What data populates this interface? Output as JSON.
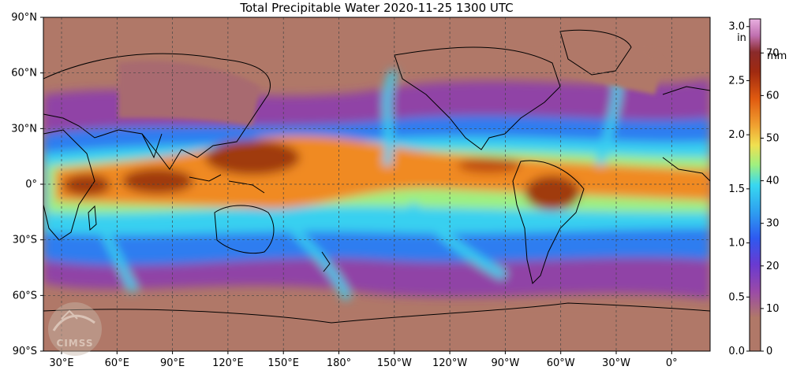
{
  "title": "Total Precipitable Water  2020-11-25 1300 UTC",
  "lat_labels": [
    "90°N",
    "60°N",
    "30°N",
    "0°",
    "30°S",
    "60°S",
    "90°S"
  ],
  "lon_labels": [
    "30°E",
    "60°E",
    "90°E",
    "120°E",
    "150°E",
    "180°",
    "150°W",
    "120°W",
    "90°W",
    "60°W",
    "30°W",
    "0°"
  ],
  "colorbar": {
    "inch_unit": "in",
    "mm_unit": "mm",
    "inch_ticks": [
      "3.0",
      "2.5",
      "2.0",
      "1.5",
      "1.0",
      "0.5",
      "0.0"
    ],
    "inch_values": [
      3.0,
      2.5,
      2.0,
      1.5,
      1.0,
      0.5,
      0.0
    ],
    "mm_ticks": [
      "70",
      "60",
      "50",
      "40",
      "30",
      "20",
      "10",
      "0"
    ],
    "mm_values": [
      70,
      60,
      50,
      40,
      30,
      20,
      10,
      0
    ],
    "max_mm": 78
  },
  "logo": {
    "text": "CIMSS"
  },
  "colors": {
    "dry": "#b07868",
    "purple": "#8a3ab0",
    "blue": "#2e7df0",
    "cyan": "#38d0f0",
    "green": "#9ef080",
    "orange": "#f08a20",
    "brown": "#a03a10",
    "pink": "#e8a0d0"
  }
}
